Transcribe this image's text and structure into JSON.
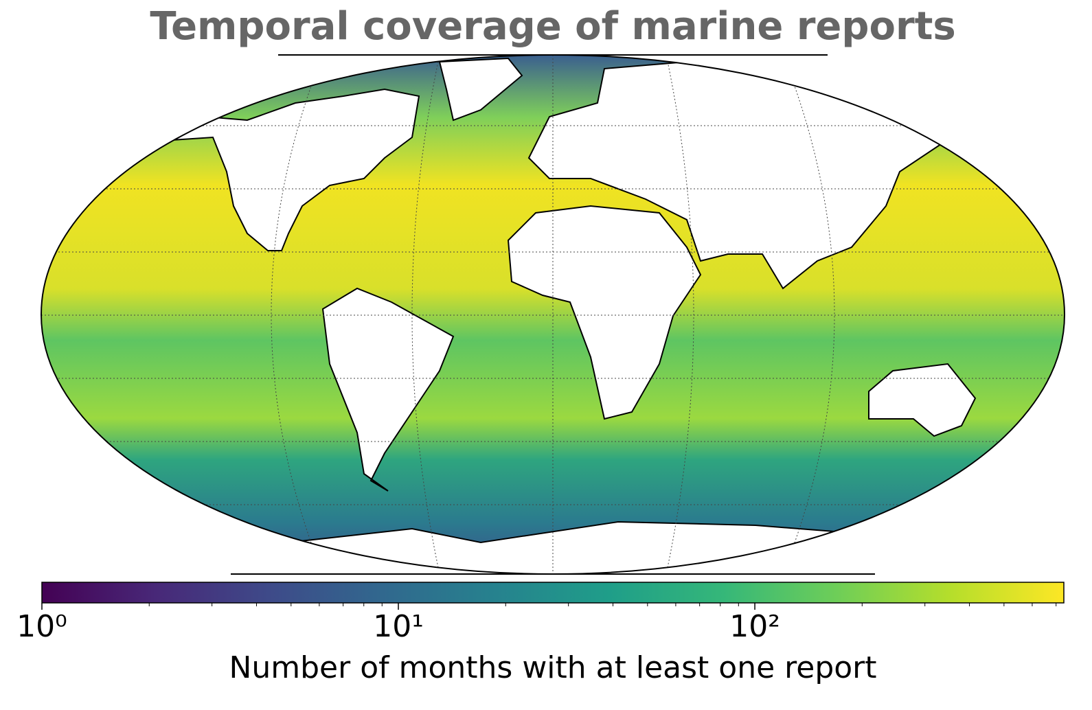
{
  "chart_data": {
    "type": "colormap",
    "title": "Temporal coverage of marine reports",
    "colorbar_label": "Number of months with at least one report",
    "colormap": "viridis",
    "log_scale": true,
    "clim": [
      1,
      736
    ],
    "cticks": [
      {
        "value": 1,
        "label": "10⁰"
      },
      {
        "value": 10,
        "label": "10¹"
      },
      {
        "value": 100,
        "label": "10²"
      }
    ],
    "cticks_minor": [
      2,
      3,
      4,
      5,
      6,
      7,
      8,
      9,
      20,
      30,
      40,
      50,
      60,
      70,
      80,
      90,
      200,
      300,
      400,
      500,
      600,
      700
    ]
  }
}
